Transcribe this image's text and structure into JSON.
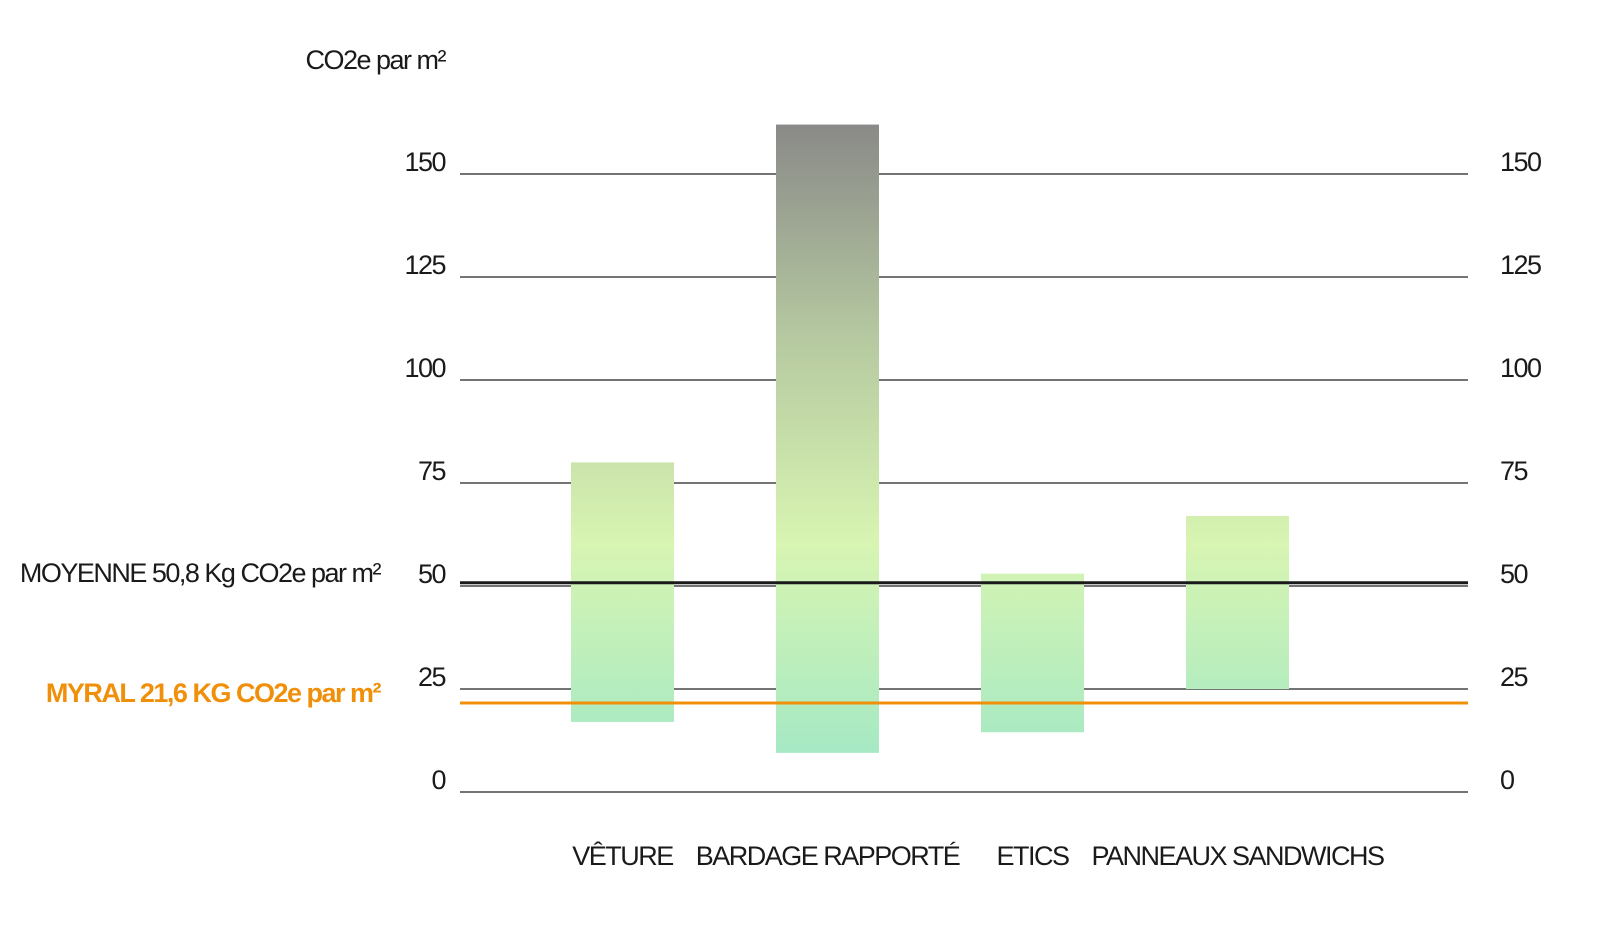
{
  "chart_data": {
    "type": "floating-bar",
    "y_axis_title": "CO2e par m²",
    "categories": [
      "VÊTURE",
      "BARDAGE RAPPORTÉ",
      "ETICS",
      "PANNEAUX SANDWICHS"
    ],
    "low": [
      17,
      9.5,
      14.5,
      25
    ],
    "high": [
      80,
      162,
      53,
      67
    ],
    "ylim": [
      0,
      165
    ],
    "yticks": [
      0,
      25,
      50,
      75,
      100,
      125,
      150
    ],
    "grid": true,
    "reference_lines": [
      {
        "label": "MOYENNE 50,8 Kg CO2e par m²",
        "value": 50.8,
        "color": "#1a1a1a"
      },
      {
        "label": "MYRAL 21,6 KG CO2e par m²",
        "value": 21.6,
        "color": "#f0900a"
      }
    ],
    "gradient": [
      "#8a8a88",
      "#b5c8a0",
      "#d8f5b2",
      "#a6e9c4"
    ]
  }
}
